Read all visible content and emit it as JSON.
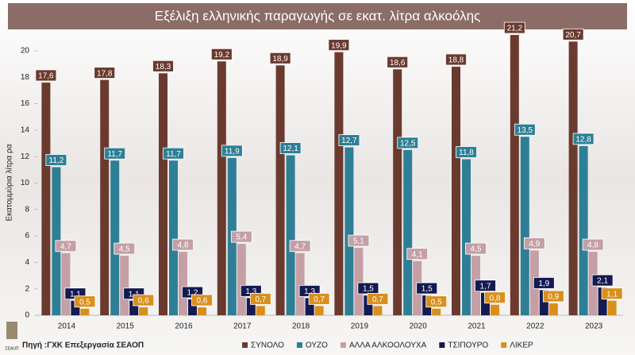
{
  "chart_data": {
    "type": "bar",
    "title": "Εξέλιξη ελληνικής παραγωγής σε εκατ. λίτρα αλκοόλης",
    "y_label": "Εκατομμύρια λίτρα ρα",
    "source": "Πηγή :ΓΧΚ Επεξεργασία ΣΕΑΟΠ",
    "logo_text": "ΣΕΑΟΠ",
    "categories": [
      "2014",
      "2015",
      "2016",
      "2017",
      "2018",
      "2019",
      "2020",
      "2021",
      "2022",
      "2023"
    ],
    "ylim": [
      0,
      20
    ],
    "yticks": [
      0,
      2,
      4,
      6,
      8,
      10,
      12,
      14,
      16,
      18,
      20
    ],
    "series": [
      {
        "name": "ΣΥΝΟΛΟ",
        "color": "#6b3a2e",
        "values": [
          17.6,
          17.8,
          18.3,
          19.2,
          18.9,
          19.9,
          18.6,
          18.8,
          21.2,
          20.7
        ],
        "value_labels": [
          "17,6",
          "17,8",
          "18,3",
          "19,2",
          "18,9",
          "19,9",
          "18,6",
          "18,8",
          "21,2",
          "20,7"
        ]
      },
      {
        "name": "ΟΥΖΟ",
        "color": "#2e7f96",
        "values": [
          11.2,
          11.7,
          11.7,
          11.9,
          12.1,
          12.7,
          12.5,
          11.8,
          13.5,
          12.8
        ],
        "value_labels": [
          "11,2",
          "11,7",
          "11,7",
          "11,9",
          "12,1",
          "12,7",
          "12,5",
          "11,8",
          "13,5",
          "12,8"
        ]
      },
      {
        "name": "ΑΛΛΑ ΑΛΚΟΟΛΟΥΧΑ",
        "color": "#c4a0a6",
        "values": [
          4.7,
          4.5,
          4.8,
          5.4,
          4.7,
          5.1,
          4.1,
          4.5,
          4.9,
          4.8
        ],
        "value_labels": [
          "4,7",
          "4,5",
          "4,8",
          "5,4",
          "4,7",
          "5,1",
          "4,1",
          "4,5",
          "4,9",
          "4,8"
        ]
      },
      {
        "name": "ΤΣΙΠΟΥΡΟ",
        "color": "#141a52",
        "values": [
          1.1,
          1.1,
          1.2,
          1.3,
          1.3,
          1.5,
          1.5,
          1.7,
          1.9,
          2.1
        ],
        "value_labels": [
          "1,1",
          "1,1",
          "1,2",
          "1,3",
          "1,3",
          "1,5",
          "1,5",
          "1,7",
          "1,9",
          "2,1"
        ]
      },
      {
        "name": "ΛΙΚΕΡ",
        "color": "#d98f1c",
        "values": [
          0.5,
          0.6,
          0.6,
          0.7,
          0.7,
          0.7,
          0.5,
          0.8,
          0.9,
          1.1
        ],
        "value_labels": [
          "0,5",
          "0,6",
          "0,6",
          "0,7",
          "0,7",
          "0,7",
          "0,5",
          "0,8",
          "0,9",
          "1,1"
        ]
      }
    ]
  }
}
